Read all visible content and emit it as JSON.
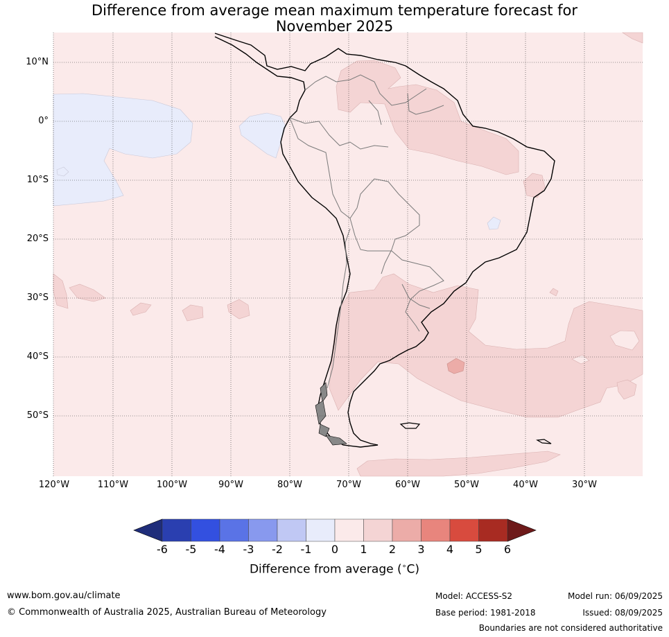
{
  "title_line1": "Difference from average mean maximum temperature forecast for",
  "title_line2": "November 2025",
  "lat_labels": [
    "10°N",
    "0°",
    "10°S",
    "20°S",
    "30°S",
    "40°S",
    "50°S"
  ],
  "lon_labels": [
    "120°W",
    "110°W",
    "100°W",
    "90°W",
    "80°W",
    "70°W",
    "60°W",
    "50°W",
    "40°W",
    "30°W"
  ],
  "colorbar": {
    "ticks": [
      "-6",
      "-5",
      "-4",
      "-3",
      "-2",
      "-1",
      "0",
      "1",
      "2",
      "3",
      "4",
      "5",
      "6"
    ],
    "colors": [
      "#1f2d7a",
      "#2a3fb0",
      "#3350e0",
      "#5a73e6",
      "#8899ee",
      "#c0c8f4",
      "#e8ecfb",
      "#fbeaea",
      "#f4d4d4",
      "#ecaca8",
      "#e8857d",
      "#d84b3e",
      "#a82b22",
      "#6e1a1a"
    ],
    "label": "Difference from average (",
    "label_deg": "∘",
    "label_unit": "C)"
  },
  "footer": {
    "website": "www.bom.gov.au/climate",
    "copyright": "© Commonwealth of Australia 2025, Australian Bureau of Meteorology",
    "model": "Model: ACCESS-S2",
    "base_period": "Base period: 1981-2018",
    "model_run": "Model run: 06/09/2025",
    "issued": "Issued: 08/09/2025",
    "disclaimer": "Boundaries are not considered authoritative"
  }
}
